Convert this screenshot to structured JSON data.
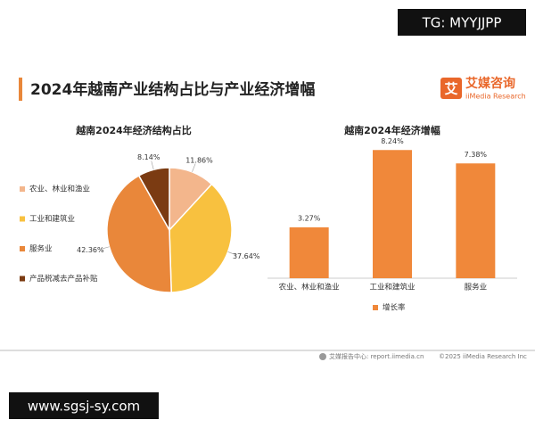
{
  "watermark_top": "TG: MYYJJPP",
  "header": {
    "title": "2024年越南产业结构占比与产业经济增幅",
    "logo_icon": "艾",
    "logo": "艾媒咨询",
    "logo_sub": "iiMedia Research"
  },
  "chart_data": [
    {
      "type": "pie",
      "title": "越南2024年经济结构占比",
      "categories": [
        "农业、林业和渔业",
        "工业和建筑业",
        "服务业",
        "产品税减去产品补贴"
      ],
      "values": [
        11.86,
        37.64,
        42.36,
        8.14
      ],
      "value_labels": [
        "11.86%",
        "37.64%",
        "42.36%",
        "8.14%"
      ],
      "colors": [
        "#f3b68c",
        "#f8c13f",
        "#e9873a",
        "#7b3b12"
      ],
      "legend": "left"
    },
    {
      "type": "bar",
      "title": "越南2024年经济增幅",
      "categories": [
        "农业、林业和渔业",
        "工业和建筑业",
        "服务业"
      ],
      "series": [
        {
          "name": "增长率",
          "color": "#f0883a",
          "values": [
            3.27,
            8.24,
            7.38
          ],
          "value_labels": [
            "3.27%",
            "8.24%",
            "7.38%"
          ]
        }
      ],
      "ylim": [
        0,
        9
      ],
      "legend": "bottom"
    }
  ],
  "footer": {
    "source": "艾媒报告中心: report.iimedia.cn",
    "copyright": "©2025  iiMedia Research Inc"
  },
  "watermark_bottom": "www.sgsj-sy.com"
}
